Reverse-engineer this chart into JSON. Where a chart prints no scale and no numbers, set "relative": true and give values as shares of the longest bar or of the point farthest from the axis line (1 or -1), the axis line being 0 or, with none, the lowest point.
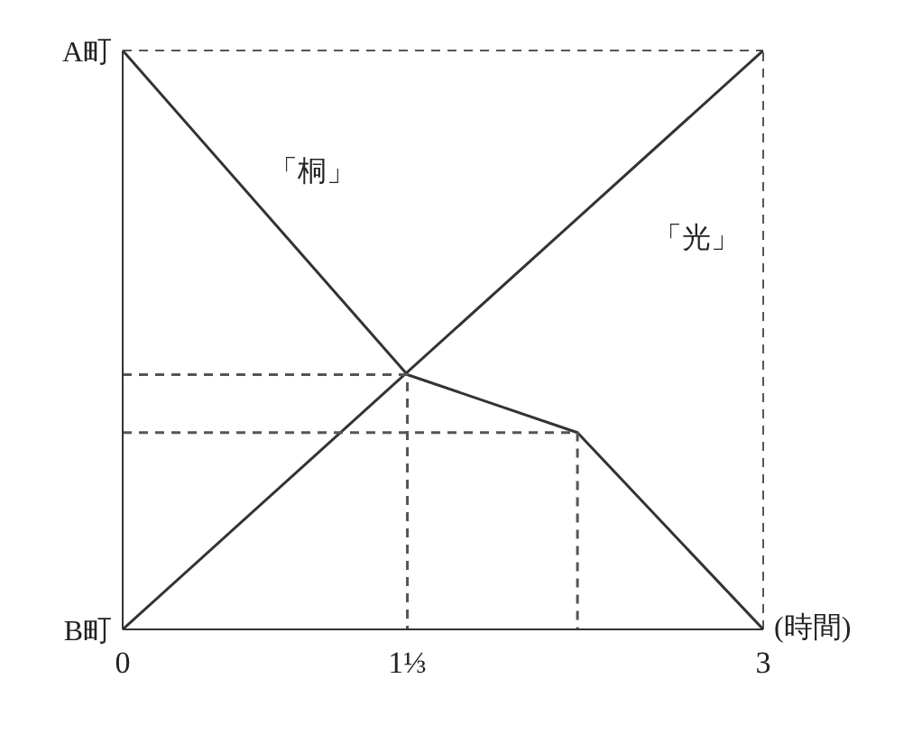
{
  "chart_data": {
    "type": "line",
    "relative": true,
    "xlabel": "(時間)",
    "xlim": [
      0,
      3
    ],
    "xticks": [
      0,
      {
        "value": 1.3333,
        "label": "1⅓"
      },
      3
    ],
    "marker": "none",
    "annotations": [
      {
        "text": "A町",
        "x": 0,
        "y": 1
      },
      {
        "text": "B町",
        "x": 0,
        "y": 0
      }
    ],
    "series": [
      {
        "name": "「桐」",
        "color": "#333333",
        "x": [
          0,
          1.3333,
          2.13,
          3
        ],
        "values": [
          1,
          0.44,
          0.34,
          0
        ]
      },
      {
        "name": "「光」",
        "color": "#333333",
        "x": [
          0,
          3
        ],
        "values": [
          0,
          1
        ]
      },
      {
        "color": "#555555",
        "line_style": "dashed",
        "x": [
          0,
          1.3333,
          1.3333
        ],
        "values": [
          0.44,
          0.44,
          0
        ]
      },
      {
        "color": "#555555",
        "line_style": "dashed",
        "x": [
          0,
          2.13,
          2.13
        ],
        "values": [
          0.34,
          0.34,
          0
        ]
      }
    ],
    "ref_lines": [
      {
        "axis": "y",
        "value": 1,
        "color": "#555555",
        "line_style": "dashed"
      },
      {
        "axis": "x",
        "value": 3,
        "color": "#555555",
        "line_style": "dashed"
      }
    ]
  }
}
